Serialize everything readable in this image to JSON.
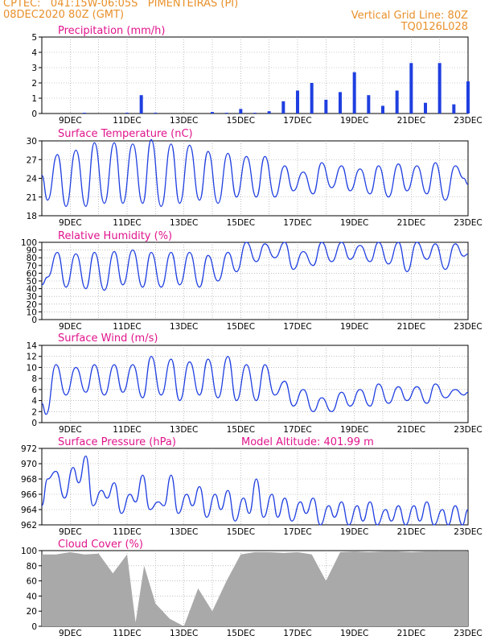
{
  "header": {
    "line1": "CPTEC:   041:15W-06:05S   PIMENTEIRAS (PI)",
    "line2": "08DEC2020 80Z (GMT)",
    "right1": "Vertical Grid Line: 80Z",
    "right2": "TQ0126L028"
  },
  "colors": {
    "header": "#e8902a",
    "panel_title": "#e0148c",
    "line": "#1f3fe0",
    "cloud": "#a9a9a9",
    "grid": "#9a9a9a"
  },
  "chart_data": [
    {
      "type": "bar",
      "title": "Precipitation (mm/h)",
      "ylim": [
        0,
        5
      ],
      "yticks": [
        0,
        1,
        2,
        3,
        4,
        5
      ],
      "xlim": [
        "8DEC",
        "23DEC"
      ],
      "xticks": [
        "9DEC",
        "11DEC",
        "13DEC",
        "15DEC",
        "17DEC",
        "19DEC",
        "21DEC",
        "23DEC"
      ],
      "grid": true,
      "series": [
        {
          "x": [
            0.5,
            1.0,
            1.5,
            2.0,
            2.5,
            3.0,
            3.5,
            4.0,
            4.5,
            5.0,
            5.5,
            6.0,
            6.5,
            7.0,
            7.5,
            8.0,
            8.5,
            9.0,
            9.5,
            10.0,
            10.5,
            11.0,
            11.5,
            12.0,
            12.5,
            13.0,
            13.5,
            14.0,
            14.5,
            15.0
          ],
          "values": [
            0,
            0,
            0.05,
            0,
            0,
            0.05,
            1.2,
            0.05,
            0,
            0,
            0,
            0.1,
            0.05,
            0.3,
            0.05,
            0.15,
            0.8,
            1.5,
            2.0,
            0.9,
            1.4,
            2.7,
            1.2,
            0.5,
            1.5,
            3.3,
            0.7,
            3.3,
            0.6,
            2.1
          ]
        }
      ]
    },
    {
      "type": "line",
      "title": "Surface Temperature (nC)",
      "ylim": [
        18,
        30
      ],
      "yticks": [
        18,
        21,
        24,
        27,
        30
      ],
      "xlim": [
        "8DEC",
        "23DEC"
      ],
      "xticks": [
        "9DEC",
        "11DEC",
        "13DEC",
        "15DEC",
        "17DEC",
        "19DEC",
        "21DEC",
        "23DEC"
      ],
      "grid": true,
      "series": [
        {
          "x": [
            0.0,
            0.2,
            0.55,
            0.85,
            1.2,
            1.55,
            1.85,
            2.2,
            2.55,
            2.85,
            3.2,
            3.55,
            3.85,
            4.2,
            4.55,
            4.85,
            5.2,
            5.55,
            5.85,
            6.2,
            6.55,
            6.85,
            7.2,
            7.55,
            7.85,
            8.2,
            8.55,
            8.85,
            9.2,
            9.55,
            9.85,
            10.2,
            10.55,
            10.85,
            11.2,
            11.55,
            11.85,
            12.2,
            12.55,
            12.85,
            13.2,
            13.55,
            13.85,
            14.2,
            14.55,
            14.85,
            15.0
          ],
          "values": [
            24.5,
            20.5,
            27.8,
            19.5,
            28.5,
            19.5,
            29.7,
            20.0,
            29.7,
            20.0,
            29.5,
            20.0,
            30.2,
            19.5,
            29.5,
            20.0,
            29.3,
            20.5,
            28.3,
            20.0,
            28.0,
            21.0,
            27.5,
            21.0,
            27.5,
            21.0,
            26.0,
            22.0,
            25.0,
            21.5,
            26.5,
            22.5,
            26.0,
            22.0,
            25.5,
            21.5,
            26.0,
            21.0,
            26.3,
            22.0,
            26.0,
            21.5,
            26.5,
            20.5,
            26.0,
            24.0,
            23.0
          ]
        }
      ]
    },
    {
      "type": "line",
      "title": "Relative Humidity (%)",
      "ylim": [
        0,
        100
      ],
      "yticks": [
        0,
        10,
        20,
        30,
        40,
        50,
        60,
        70,
        80,
        90,
        100
      ],
      "xlim": [
        "8DEC",
        "23DEC"
      ],
      "xticks": [
        "9DEC",
        "11DEC",
        "13DEC",
        "15DEC",
        "17DEC",
        "19DEC",
        "21DEC",
        "23DEC"
      ],
      "grid": true,
      "series": [
        {
          "x": [
            0.0,
            0.2,
            0.55,
            0.85,
            1.2,
            1.55,
            1.85,
            2.2,
            2.55,
            2.85,
            3.2,
            3.55,
            3.85,
            4.2,
            4.55,
            4.85,
            5.2,
            5.55,
            5.85,
            6.2,
            6.55,
            6.85,
            7.2,
            7.55,
            7.85,
            8.2,
            8.55,
            8.85,
            9.2,
            9.55,
            9.85,
            10.2,
            10.55,
            10.85,
            11.2,
            11.55,
            11.85,
            12.2,
            12.55,
            12.85,
            13.2,
            13.55,
            13.85,
            14.2,
            14.55,
            14.85,
            15.0
          ],
          "values": [
            45,
            55,
            87,
            42,
            85,
            40,
            87,
            38,
            88,
            45,
            90,
            42,
            87,
            42,
            87,
            45,
            87,
            42,
            83,
            50,
            87,
            62,
            100,
            75,
            98,
            80,
            100,
            65,
            88,
            70,
            100,
            75,
            100,
            78,
            96,
            75,
            100,
            72,
            100,
            62,
            100,
            78,
            98,
            65,
            98,
            82,
            85
          ]
        }
      ]
    },
    {
      "type": "line",
      "title": "Surface Wind (m/s)",
      "ylim": [
        0,
        14
      ],
      "yticks": [
        0,
        2,
        4,
        6,
        8,
        10,
        12,
        14
      ],
      "xlim": [
        "8DEC",
        "23DEC"
      ],
      "xticks": [
        "9DEC",
        "11DEC",
        "13DEC",
        "15DEC",
        "17DEC",
        "19DEC",
        "21DEC",
        "23DEC"
      ],
      "grid": true,
      "series": [
        {
          "x": [
            0.0,
            0.15,
            0.5,
            0.85,
            1.2,
            1.55,
            1.85,
            2.2,
            2.55,
            2.85,
            3.2,
            3.55,
            3.85,
            4.2,
            4.55,
            4.85,
            5.2,
            5.55,
            5.85,
            6.2,
            6.55,
            6.85,
            7.2,
            7.55,
            7.85,
            8.2,
            8.55,
            8.85,
            9.2,
            9.55,
            9.85,
            10.2,
            10.55,
            10.85,
            11.2,
            11.55,
            11.85,
            12.2,
            12.55,
            12.85,
            13.2,
            13.55,
            13.85,
            14.2,
            14.55,
            14.85,
            15.0
          ],
          "values": [
            3.5,
            1.5,
            10.5,
            5.0,
            10.0,
            5.5,
            10.5,
            5.0,
            10.5,
            5.5,
            10.5,
            4.5,
            12.0,
            5.0,
            11.5,
            4.0,
            11.0,
            5.0,
            11.5,
            4.5,
            12.0,
            4.0,
            10.5,
            4.0,
            10.5,
            5.0,
            7.5,
            3.0,
            6.0,
            2.0,
            4.5,
            2.0,
            5.5,
            3.0,
            6.0,
            3.0,
            7.0,
            3.5,
            6.5,
            4.0,
            6.5,
            3.5,
            7.0,
            4.5,
            6.0,
            5.0,
            5.5
          ]
        }
      ]
    },
    {
      "type": "line",
      "title": "Surface Pressure (hPa)",
      "annotation": "Model Altitude: 401.99 m",
      "ylim": [
        962,
        972
      ],
      "yticks": [
        962,
        964,
        966,
        968,
        970,
        972
      ],
      "xlim": [
        "8DEC",
        "23DEC"
      ],
      "xticks": [
        "9DEC",
        "11DEC",
        "13DEC",
        "15DEC",
        "17DEC",
        "19DEC",
        "21DEC",
        "23DEC"
      ],
      "grid": true,
      "series": [
        {
          "x": [
            0.0,
            0.2,
            0.5,
            0.8,
            1.1,
            1.3,
            1.55,
            1.8,
            2.1,
            2.3,
            2.55,
            2.8,
            3.1,
            3.3,
            3.55,
            3.8,
            4.1,
            4.3,
            4.55,
            4.8,
            5.1,
            5.3,
            5.55,
            5.8,
            6.1,
            6.3,
            6.55,
            6.8,
            7.1,
            7.3,
            7.55,
            7.8,
            8.1,
            8.3,
            8.55,
            8.8,
            9.1,
            9.3,
            9.55,
            9.8,
            10.1,
            10.3,
            10.55,
            10.8,
            11.1,
            11.3,
            11.55,
            11.8,
            12.1,
            12.3,
            12.55,
            12.8,
            13.1,
            13.3,
            13.55,
            13.8,
            14.1,
            14.3,
            14.55,
            14.8,
            15.0
          ],
          "values": [
            964.5,
            968.0,
            969.0,
            965.5,
            969.5,
            967.5,
            971.0,
            964.5,
            966.5,
            965.5,
            967.5,
            963.5,
            966.0,
            965.0,
            968.5,
            964.0,
            965.0,
            964.5,
            968.5,
            963.5,
            966.0,
            964.5,
            967.0,
            963.0,
            966.0,
            964.0,
            966.5,
            962.5,
            965.5,
            963.5,
            968.0,
            963.0,
            966.0,
            963.0,
            965.5,
            962.5,
            965.0,
            963.5,
            965.5,
            962.0,
            964.5,
            963.0,
            965.0,
            962.0,
            964.5,
            962.5,
            965.0,
            962.0,
            964.0,
            962.5,
            964.5,
            962.0,
            964.5,
            962.5,
            965.0,
            962.0,
            964.0,
            962.0,
            964.5,
            962.0,
            964.0
          ]
        }
      ]
    },
    {
      "type": "area",
      "title": "Cloud Cover (%)",
      "ylim": [
        0,
        100
      ],
      "yticks": [
        0,
        20,
        40,
        60,
        80,
        100
      ],
      "xlim": [
        "8DEC",
        "23DEC"
      ],
      "xticks": [
        "9DEC",
        "11DEC",
        "13DEC",
        "15DEC",
        "17DEC",
        "19DEC",
        "21DEC",
        "23DEC"
      ],
      "grid": true,
      "series": [
        {
          "x": [
            0.0,
            0.5,
            1.0,
            1.5,
            2.0,
            2.5,
            3.0,
            3.3,
            3.6,
            4.0,
            4.5,
            5.0,
            5.5,
            6.0,
            6.5,
            7.0,
            7.5,
            8.0,
            8.5,
            9.0,
            9.5,
            10.0,
            10.5,
            11.0,
            11.5,
            12.0,
            12.5,
            13.0,
            13.5,
            14.0,
            14.5,
            15.0
          ],
          "values": [
            95,
            95,
            98,
            95,
            96,
            70,
            95,
            5,
            80,
            30,
            10,
            0,
            50,
            20,
            60,
            95,
            98,
            98,
            97,
            98,
            95,
            60,
            98,
            99,
            98,
            99,
            99,
            98,
            99,
            99,
            99,
            99
          ]
        }
      ]
    }
  ]
}
